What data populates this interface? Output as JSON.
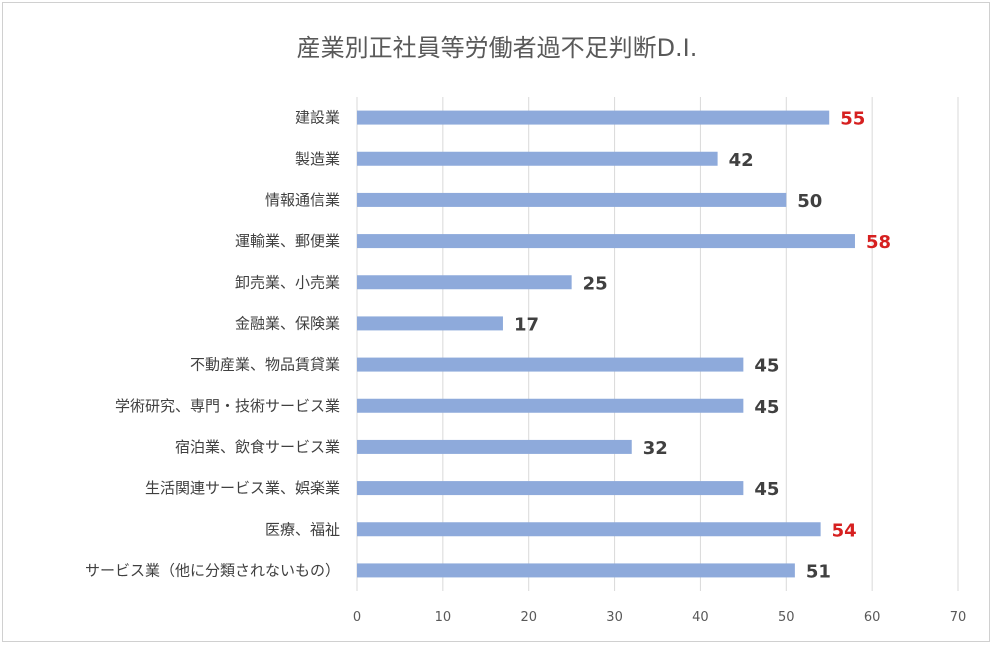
{
  "chart_data": {
    "type": "bar",
    "orientation": "horizontal",
    "title": "産業別正社員等労働者過不足判断D.I.",
    "categories": [
      "建設業",
      "製造業",
      "情報通信業",
      "運輸業、郵便業",
      "卸売業、小売業",
      "金融業、保険業",
      "不動産業、物品賃貸業",
      "学術研究、専門・技術サービス業",
      "宿泊業、飲食サービス業",
      "生活関連サービス業、娯楽業",
      "医療、福祉",
      "サービス業（他に分類されないもの）"
    ],
    "values": [
      55,
      42,
      50,
      58,
      25,
      17,
      45,
      45,
      32,
      45,
      54,
      51
    ],
    "highlighted": [
      true,
      false,
      false,
      true,
      false,
      false,
      false,
      false,
      false,
      false,
      true,
      false
    ],
    "xlim": [
      0,
      70
    ],
    "xticks": [
      0,
      10,
      20,
      30,
      40,
      50,
      60,
      70
    ],
    "grid": "vertical",
    "bar_color": "#8eaadb",
    "label_color": "#404040",
    "highlight_color": "#d62020",
    "grid_color": "#d9d9d9"
  }
}
